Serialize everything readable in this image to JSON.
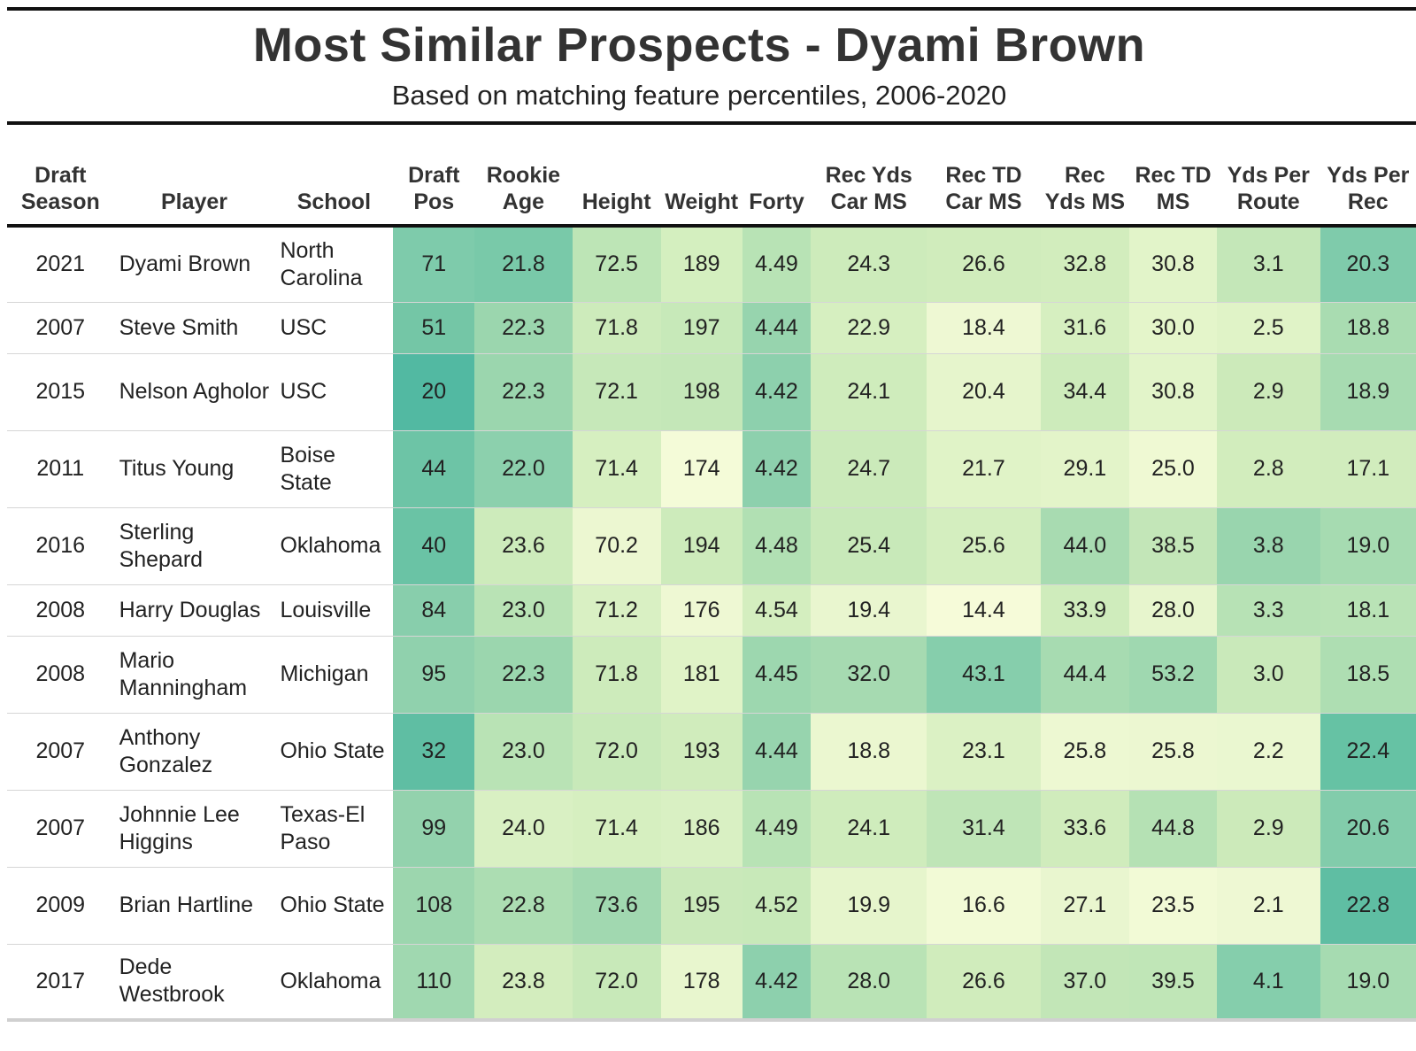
{
  "title": "Most Similar Prospects - Dyami Brown",
  "subtitle": "Based on matching feature percentiles, 2006-2020",
  "columns": [
    {
      "key": "season",
      "label": "Draft Season"
    },
    {
      "key": "player",
      "label": "Player"
    },
    {
      "key": "school",
      "label": "School"
    },
    {
      "key": "draft_pos",
      "label": "Draft Pos"
    },
    {
      "key": "rookie_age",
      "label": "Rookie Age"
    },
    {
      "key": "height",
      "label": "Height"
    },
    {
      "key": "weight",
      "label": "Weight"
    },
    {
      "key": "forty",
      "label": "Forty"
    },
    {
      "key": "rec_yds_car_ms",
      "label": "Rec Yds Car MS"
    },
    {
      "key": "rec_td_car_ms",
      "label": "Rec TD Car MS"
    },
    {
      "key": "rec_yds_ms",
      "label": "Rec Yds MS"
    },
    {
      "key": "rec_td_ms",
      "label": "Rec TD MS"
    },
    {
      "key": "yds_per_route",
      "label": "Yds Per Route"
    },
    {
      "key": "yds_per_rec",
      "label": "Yds Per Rec"
    }
  ],
  "chart_data": {
    "type": "table",
    "title": "Most Similar Prospects - Dyami Brown",
    "subtitle": "Based on matching feature percentiles, 2006-2020",
    "rows": [
      {
        "season": "2021",
        "player": "Dyami Brown",
        "school": "North Carolina",
        "draft_pos": "71",
        "rookie_age": "21.8",
        "height": "72.5",
        "weight": "189",
        "forty": "4.49",
        "rec_yds_car_ms": "24.3",
        "rec_td_car_ms": "26.6",
        "rec_yds_ms": "32.8",
        "rec_td_ms": "30.8",
        "yds_per_route": "3.1",
        "yds_per_rec": "20.3",
        "colors": {
          "draft_pos": "#7ecbab",
          "rookie_age": "#79c9a9",
          "height": "#bde5b6",
          "weight": "#d4efbf",
          "forty": "#b8e3b5",
          "rec_yds_car_ms": "#cdebbb",
          "rec_td_car_ms": "#d0ecbc",
          "rec_yds_ms": "#d2edbd",
          "rec_td_ms": "#e2f4c9",
          "yds_per_route": "#c4e7b8",
          "yds_per_rec": "#7fcbab"
        }
      },
      {
        "season": "2007",
        "player": "Steve Smith",
        "school": "USC",
        "draft_pos": "51",
        "rookie_age": "22.3",
        "height": "71.8",
        "weight": "197",
        "forty": "4.44",
        "rec_yds_car_ms": "22.9",
        "rec_td_car_ms": "18.4",
        "rec_yds_ms": "31.6",
        "rec_td_ms": "30.0",
        "yds_per_route": "2.5",
        "yds_per_rec": "18.8",
        "colors": {
          "draft_pos": "#74c6a6",
          "rookie_age": "#9bd6ae",
          "height": "#cdebbb",
          "weight": "#c7e9b9",
          "forty": "#97d4ae",
          "rec_yds_car_ms": "#d6efc0",
          "rec_td_car_ms": "#eef8d3",
          "rec_yds_ms": "#d6efc0",
          "rec_td_ms": "#e4f5ca",
          "yds_per_route": "#e0f3c7",
          "yds_per_rec": "#a9dcb1"
        }
      },
      {
        "season": "2015",
        "player": "Nelson Agholor",
        "school": "USC",
        "draft_pos": "20",
        "rookie_age": "22.3",
        "height": "72.1",
        "weight": "198",
        "forty": "4.42",
        "rec_yds_car_ms": "24.1",
        "rec_td_car_ms": "20.4",
        "rec_yds_ms": "34.4",
        "rec_td_ms": "30.8",
        "yds_per_route": "2.9",
        "yds_per_rec": "18.9",
        "colors": {
          "draft_pos": "#52b9a2",
          "rookie_age": "#9bd6ae",
          "height": "#c6e8b9",
          "weight": "#c4e7b8",
          "forty": "#8dd0ad",
          "rec_yds_car_ms": "#cfecbc",
          "rec_td_car_ms": "#e6f5cc",
          "rec_yds_ms": "#cdebbb",
          "rec_td_ms": "#e2f4c9",
          "yds_per_route": "#cceaba",
          "yds_per_rec": "#a7dbb1"
        }
      },
      {
        "season": "2011",
        "player": "Titus Young",
        "school": "Boise State",
        "draft_pos": "44",
        "rookie_age": "22.0",
        "height": "71.4",
        "weight": "174",
        "forty": "4.42",
        "rec_yds_car_ms": "24.7",
        "rec_td_car_ms": "21.7",
        "rec_yds_ms": "29.1",
        "rec_td_ms": "25.0",
        "yds_per_route": "2.8",
        "yds_per_rec": "17.1",
        "colors": {
          "draft_pos": "#6dc4a6",
          "rookie_age": "#8cd0ad",
          "height": "#d6efc0",
          "weight": "#f4fbd8",
          "forty": "#8dd0ad",
          "rec_yds_car_ms": "#cbeaba",
          "rec_td_car_ms": "#e0f3c7",
          "rec_yds_ms": "#e3f4c9",
          "rec_td_ms": "#eff9d3",
          "yds_per_route": "#d2edbd",
          "yds_per_rec": "#d1ecbd"
        }
      },
      {
        "season": "2016",
        "player": "Sterling Shepard",
        "school": "Oklahoma",
        "draft_pos": "40",
        "rookie_age": "23.6",
        "height": "70.2",
        "weight": "194",
        "forty": "4.48",
        "rec_yds_car_ms": "25.4",
        "rec_td_car_ms": "25.6",
        "rec_yds_ms": "44.0",
        "rec_td_ms": "38.5",
        "yds_per_route": "3.8",
        "yds_per_rec": "19.0",
        "colors": {
          "draft_pos": "#6ac3a5",
          "rookie_age": "#cdebbb",
          "height": "#ecf7d1",
          "weight": "#cdebbb",
          "forty": "#b1e0b3",
          "rec_yds_car_ms": "#c8e9b9",
          "rec_td_car_ms": "#d4eebf",
          "rec_yds_ms": "#a8dbb1",
          "rec_td_ms": "#c3e6b8",
          "yds_per_route": "#99d5ae",
          "yds_per_rec": "#a6dbb1"
        }
      },
      {
        "season": "2008",
        "player": "Harry Douglas",
        "school": "Louisville",
        "draft_pos": "84",
        "rookie_age": "23.0",
        "height": "71.2",
        "weight": "176",
        "forty": "4.54",
        "rec_yds_car_ms": "19.4",
        "rec_td_car_ms": "14.4",
        "rec_yds_ms": "33.9",
        "rec_td_ms": "28.0",
        "yds_per_route": "3.3",
        "yds_per_rec": "18.1",
        "colors": {
          "draft_pos": "#88ceac",
          "rookie_age": "#b9e3b5",
          "height": "#d9f0c3",
          "weight": "#eef8d3",
          "forty": "#d4eebf",
          "rec_yds_car_ms": "#e9f6cf",
          "rec_td_car_ms": "#f6fbd9",
          "rec_yds_ms": "#cfecbc",
          "rec_td_ms": "#e7f5cd",
          "yds_per_route": "#b7e2b5",
          "yds_per_rec": "#b9e3b6"
        }
      },
      {
        "season": "2008",
        "player": "Mario Manningham",
        "school": "Michigan",
        "draft_pos": "95",
        "rookie_age": "22.3",
        "height": "71.8",
        "weight": "181",
        "forty": "4.45",
        "rec_yds_car_ms": "32.0",
        "rec_td_car_ms": "43.1",
        "rec_yds_ms": "44.4",
        "rec_td_ms": "53.2",
        "yds_per_route": "3.0",
        "yds_per_rec": "18.5",
        "colors": {
          "draft_pos": "#90d1ad",
          "rookie_age": "#9bd6ae",
          "height": "#cdebbb",
          "weight": "#e0f3c7",
          "forty": "#9dd7af",
          "rec_yds_car_ms": "#a6dab1",
          "rec_td_car_ms": "#86ceac",
          "rec_yds_ms": "#a7dbb1",
          "rec_td_ms": "#9fd8b0",
          "yds_per_route": "#c9e9ba",
          "yds_per_rec": "#aedeb2"
        }
      },
      {
        "season": "2007",
        "player": "Anthony Gonzalez",
        "school": "Ohio State",
        "draft_pos": "32",
        "rookie_age": "23.0",
        "height": "72.0",
        "weight": "193",
        "forty": "4.44",
        "rec_yds_car_ms": "18.8",
        "rec_td_car_ms": "23.1",
        "rec_yds_ms": "25.8",
        "rec_td_ms": "25.8",
        "yds_per_route": "2.2",
        "yds_per_rec": "22.4",
        "colors": {
          "draft_pos": "#5fbea3",
          "rookie_age": "#b9e3b5",
          "height": "#c8e9b9",
          "weight": "#d0ecbc",
          "forty": "#97d4ae",
          "rec_yds_car_ms": "#ebf7d0",
          "rec_td_car_ms": "#dbf1c4",
          "rec_yds_ms": "#edf8d2",
          "rec_td_ms": "#ecf7d1",
          "yds_per_route": "#eaf7d0",
          "yds_per_rec": "#66c2a4"
        }
      },
      {
        "season": "2007",
        "player": "Johnnie Lee Higgins",
        "school": "Texas-El Paso",
        "draft_pos": "99",
        "rookie_age": "24.0",
        "height": "71.4",
        "weight": "186",
        "forty": "4.49",
        "rec_yds_car_ms": "24.1",
        "rec_td_car_ms": "31.4",
        "rec_yds_ms": "33.6",
        "rec_td_ms": "44.8",
        "yds_per_route": "2.9",
        "yds_per_rec": "20.6",
        "colors": {
          "draft_pos": "#93d2ad",
          "rookie_age": "#d9f0c3",
          "height": "#d6efc0",
          "weight": "#d9f0c3",
          "forty": "#b8e3b5",
          "rec_yds_car_ms": "#cfecbc",
          "rec_td_car_ms": "#bfe5b7",
          "rec_yds_ms": "#d0ecbc",
          "rec_td_ms": "#b5e1b4",
          "yds_per_route": "#cceaba",
          "yds_per_rec": "#82ccab"
        }
      },
      {
        "season": "2009",
        "player": "Brian Hartline",
        "school": "Ohio State",
        "draft_pos": "108",
        "rookie_age": "22.8",
        "height": "73.6",
        "weight": "195",
        "forty": "4.52",
        "rec_yds_car_ms": "19.9",
        "rec_td_car_ms": "16.6",
        "rec_yds_ms": "27.1",
        "rec_td_ms": "23.5",
        "yds_per_route": "2.1",
        "yds_per_rec": "22.8",
        "colors": {
          "draft_pos": "#9cd6ae",
          "rookie_age": "#acddb2",
          "height": "#a1d8b0",
          "weight": "#cae9ba",
          "forty": "#c8e9b9",
          "rec_yds_car_ms": "#e6f5cc",
          "rec_td_car_ms": "#f2fad6",
          "rec_yds_ms": "#e9f6cf",
          "rec_td_ms": "#f2fad6",
          "yds_per_route": "#eef8d3",
          "yds_per_rec": "#5fbea3"
        }
      },
      {
        "season": "2017",
        "player": "Dede Westbrook",
        "school": "Oklahoma",
        "draft_pos": "110",
        "rookie_age": "23.8",
        "height": "72.0",
        "weight": "178",
        "forty": "4.42",
        "rec_yds_car_ms": "28.0",
        "rec_td_car_ms": "26.6",
        "rec_yds_ms": "37.0",
        "rec_td_ms": "39.5",
        "yds_per_route": "4.1",
        "yds_per_rec": "19.0",
        "colors": {
          "draft_pos": "#a0d8b0",
          "rookie_age": "#d3edbe",
          "height": "#c8e9b9",
          "weight": "#e8f6ce",
          "forty": "#8dd0ad",
          "rec_yds_car_ms": "#b9e3b5",
          "rec_td_car_ms": "#d0ecbc",
          "rec_yds_ms": "#c2e6b7",
          "rec_td_ms": "#c0e6b7",
          "yds_per_route": "#85ceac",
          "yds_per_rec": "#a6dbb1"
        }
      }
    ]
  }
}
